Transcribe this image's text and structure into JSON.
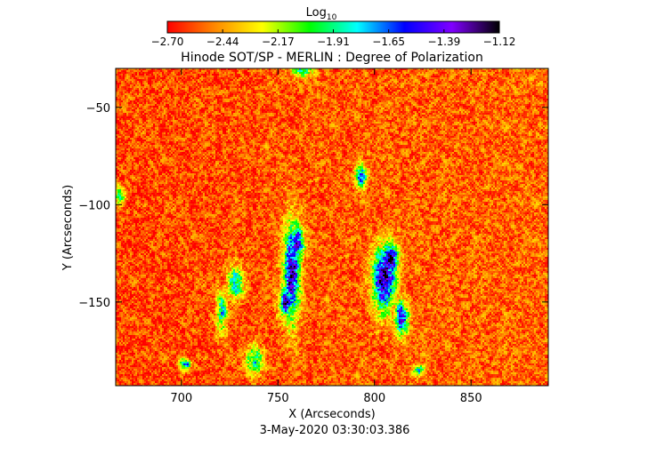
{
  "chart_data": {
    "type": "heatmap",
    "title": "Hinode SOT/SP - MERLIN : Degree of Polarization",
    "subtitle": "",
    "xlabel": "X (Arcseconds)",
    "ylabel": "Y (Arcseconds)",
    "footer": "3-May-2020 03:30:03.386",
    "xlim": [
      666,
      890
    ],
    "ylim": [
      -193,
      -30
    ],
    "x_ticks": [
      700,
      750,
      800,
      850
    ],
    "y_ticks": [
      -50,
      -100,
      -150
    ],
    "x_tick_labels": [
      "700",
      "750",
      "800",
      "850"
    ],
    "y_tick_labels": [
      "−50",
      "−100",
      "−150"
    ],
    "grid": false,
    "colorbar": {
      "title": "Log",
      "title_subscript": "10",
      "placement": "top",
      "range": [
        -2.7,
        -1.12
      ],
      "tick_labels": [
        "−2.70",
        "−2.44",
        "−2.17",
        "−1.91",
        "−1.65",
        "−1.39",
        "−1.12"
      ],
      "colors": [
        "#ff0000",
        "#ff8800",
        "#ffff00",
        "#00ff00",
        "#00ffff",
        "#0000ff",
        "#8000ff",
        "#000000"
      ]
    },
    "background_value": -2.58,
    "features": [
      {
        "x": 757,
        "y": -135,
        "sx": 3,
        "sy": 17,
        "peak": -1.35
      },
      {
        "x": 760,
        "y": -120,
        "sx": 2.5,
        "sy": 6,
        "peak": -1.42
      },
      {
        "x": 754,
        "y": -150,
        "sx": 2.5,
        "sy": 5,
        "peak": -1.38
      },
      {
        "x": 805,
        "y": -138,
        "sx": 4,
        "sy": 11,
        "peak": -1.28
      },
      {
        "x": 808,
        "y": -128,
        "sx": 3,
        "sy": 6,
        "peak": -1.35
      },
      {
        "x": 814,
        "y": -158,
        "sx": 2.5,
        "sy": 6,
        "peak": -1.5
      },
      {
        "x": 793,
        "y": -85,
        "sx": 2,
        "sy": 4,
        "peak": -1.65
      },
      {
        "x": 728,
        "y": -140,
        "sx": 3,
        "sy": 6,
        "peak": -1.8
      },
      {
        "x": 721,
        "y": -155,
        "sx": 2,
        "sy": 8,
        "peak": -1.9
      },
      {
        "x": 738,
        "y": -180,
        "sx": 3,
        "sy": 5,
        "peak": -1.8
      },
      {
        "x": 702,
        "y": -182,
        "sx": 2,
        "sy": 2,
        "peak": -1.7
      },
      {
        "x": 763,
        "y": -30,
        "sx": 4,
        "sy": 3,
        "peak": -1.9
      },
      {
        "x": 823,
        "y": -185,
        "sx": 2,
        "sy": 2,
        "peak": -1.85
      },
      {
        "x": 668,
        "y": -95,
        "sx": 2,
        "sy": 3,
        "peak": -1.85
      }
    ]
  }
}
